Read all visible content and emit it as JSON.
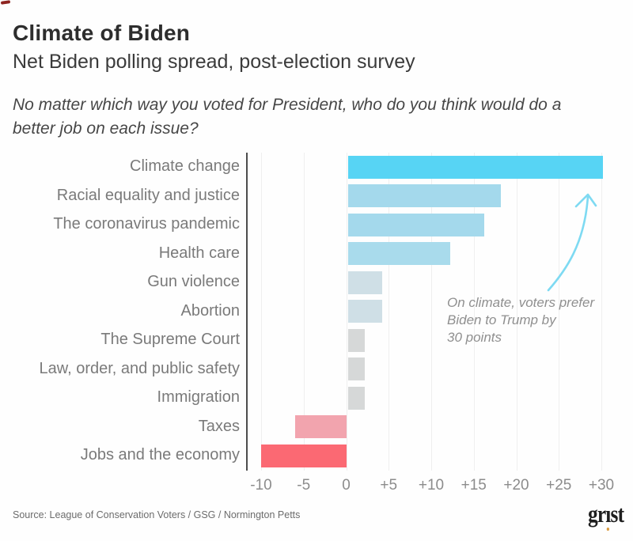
{
  "header": {
    "title": "Climate of Biden",
    "subtitle": "Net Biden polling spread, post-election survey",
    "question": "No matter which way you voted for President, who do you think would do a better job on each issue?"
  },
  "chart_data": {
    "type": "bar",
    "orientation": "horizontal",
    "categories": [
      "Climate change",
      "Racial equality and justice",
      "The coronavirus pandemic",
      "Health care",
      "Gun violence",
      "Abortion",
      "The Supreme Court",
      "Law, order, and public safety",
      "Immigration",
      "Taxes",
      "Jobs and the economy"
    ],
    "values": [
      30,
      18,
      16,
      12,
      4,
      4,
      2,
      2,
      2,
      -6,
      -10
    ],
    "bar_colors": [
      "#57d4f4",
      "#a4d9ec",
      "#a4d9ec",
      "#a9dbec",
      "#cfdfe6",
      "#cfdfe6",
      "#d6d8d8",
      "#d6d8d8",
      "#d6d8d8",
      "#f2a4ae",
      "#fb6973"
    ],
    "xlim": [
      -12,
      32
    ],
    "grid": true,
    "ticks": {
      "values": [
        -10,
        -5,
        0,
        5,
        10,
        15,
        20,
        25,
        30
      ],
      "labels": [
        "-10",
        "-5",
        "0",
        "+5",
        "+10",
        "+15",
        "+20",
        "+25",
        "+30"
      ]
    },
    "annotation": {
      "text_lines": [
        "On climate, voters prefer",
        "Biden to Trump by",
        "30 points"
      ],
      "arrow_color": "#7edaf2"
    }
  },
  "footer": {
    "source": "Source: League of Conservation Voters / GSG / Normington Petts",
    "logo_text_parts": {
      "pre": "gr",
      "dotless_i": "ı",
      "post": "st"
    },
    "logo_dot_color": "#d99a3e"
  },
  "colors": {
    "positive_strong": "#57d4f4",
    "positive_mid": "#a4d9ec",
    "neutral": "#d6d8d8",
    "negative_mid": "#f2a4ae",
    "negative_strong": "#fb6973",
    "axis_line": "#4d4d4d",
    "gridline": "#efefef"
  }
}
